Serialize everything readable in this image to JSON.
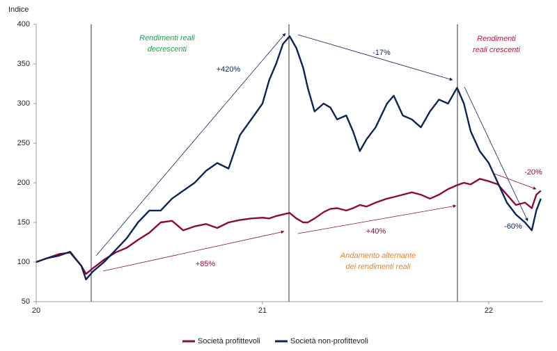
{
  "chart_data": {
    "type": "line",
    "y_label": "Indice",
    "x": [
      20.0,
      20.05,
      20.1,
      20.15,
      20.2,
      20.22,
      20.25,
      20.3,
      20.35,
      20.4,
      20.45,
      20.5,
      20.55,
      20.6,
      20.65,
      20.7,
      20.75,
      20.8,
      20.85,
      20.9,
      20.95,
      21.0,
      21.03,
      21.06,
      21.09,
      21.12,
      21.15,
      21.18,
      21.2,
      21.23,
      21.27,
      21.3,
      21.33,
      21.37,
      21.4,
      21.43,
      21.46,
      21.5,
      21.55,
      21.58,
      21.62,
      21.66,
      21.7,
      21.74,
      21.78,
      21.82,
      21.86,
      21.89,
      21.92,
      21.96,
      22.0,
      22.04,
      22.08,
      22.12,
      22.16,
      22.19,
      22.21,
      22.23
    ],
    "series": [
      {
        "name": "Società profittevoli",
        "color": "#8b0a3e",
        "values": [
          100,
          105,
          110,
          112,
          95,
          85,
          92,
          103,
          112,
          118,
          128,
          137,
          150,
          152,
          140,
          145,
          148,
          143,
          150,
          153,
          155,
          156,
          155,
          158,
          160,
          162,
          155,
          150,
          150,
          155,
          163,
          167,
          168,
          165,
          168,
          172,
          170,
          175,
          180,
          182,
          185,
          188,
          185,
          180,
          185,
          192,
          197,
          200,
          198,
          205,
          202,
          198,
          185,
          172,
          175,
          168,
          185,
          190
        ]
      },
      {
        "name": "Società non-profittevoli",
        "color": "#0d2356",
        "values": [
          100,
          105,
          108,
          113,
          95,
          78,
          88,
          100,
          115,
          130,
          150,
          165,
          165,
          180,
          190,
          200,
          215,
          225,
          218,
          260,
          280,
          300,
          330,
          350,
          375,
          385,
          370,
          345,
          320,
          290,
          300,
          295,
          280,
          285,
          265,
          240,
          255,
          270,
          300,
          310,
          285,
          280,
          270,
          290,
          305,
          300,
          320,
          300,
          265,
          240,
          225,
          200,
          175,
          160,
          150,
          140,
          165,
          180
        ]
      }
    ],
    "xlim": [
      20,
      22.24
    ],
    "xticks": [
      20,
      21,
      22
    ],
    "ylim": [
      50,
      400
    ],
    "yticks": [
      50,
      100,
      150,
      200,
      250,
      300,
      350,
      400
    ],
    "legend": "bottom",
    "annotations": [
      {
        "lines": [
          "Rendimenti reali",
          "decrescenti"
        ],
        "color": "#1aa053"
      },
      {
        "lines": [
          "+420%"
        ],
        "color": "#0d2356"
      },
      {
        "lines": [
          "-17%"
        ],
        "color": "#0d2356"
      },
      {
        "lines": [
          "Rendimenti",
          "reali crescenti"
        ],
        "color": "#c0143c"
      },
      {
        "lines": [
          "+85%"
        ],
        "color": "#8b0a3e"
      },
      {
        "lines": [
          "+40%"
        ],
        "color": "#8b0a3e"
      },
      {
        "lines": [
          "Andamento alternante",
          "dei rendimenti reali"
        ],
        "color": "#e8822a"
      },
      {
        "lines": [
          "-20%"
        ],
        "color": "#8b0a3e"
      },
      {
        "lines": [
          "-60%"
        ],
        "color": "#0d2356"
      }
    ]
  }
}
